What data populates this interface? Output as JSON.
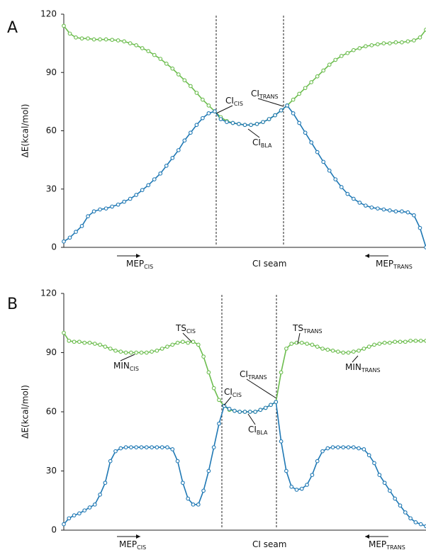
{
  "chart_data": [
    {
      "type": "line",
      "panel_label": "A",
      "ylabel": "ΔE(kcal/mol)",
      "ylim": [
        0,
        120
      ],
      "yticks": [
        0,
        30,
        60,
        90,
        120
      ],
      "x_labels": [
        {
          "main": "MEP",
          "sub": "CIS"
        },
        {
          "main": "CI seam"
        },
        {
          "main": "MEP",
          "sub": "TRANS"
        }
      ],
      "annotations": [
        {
          "main": "CI",
          "sub": "CIS"
        },
        {
          "main": "CI",
          "sub": "TRANS"
        },
        {
          "main": "CI",
          "sub": "BLA"
        }
      ],
      "series": [
        {
          "color": "#6cbd4e",
          "values": [
            114,
            110,
            108,
            107.5,
            107.5,
            107,
            107,
            107,
            106.8,
            106.5,
            106,
            105,
            104,
            102.5,
            101,
            99,
            97,
            94.5,
            92,
            89,
            86,
            83,
            79.5,
            76,
            73,
            70,
            67,
            65,
            64,
            63.5,
            63,
            63,
            63.5,
            64.5,
            66,
            68,
            70.5,
            73,
            76,
            79,
            82,
            85,
            88,
            91,
            94,
            96.5,
            98.5,
            100,
            101.5,
            102.5,
            103.5,
            104,
            104.5,
            105,
            105,
            105.5,
            105.5,
            106,
            106.5,
            108,
            112
          ]
        },
        {
          "color": "#1f78b4",
          "values": [
            3,
            5,
            8,
            11,
            16,
            18.5,
            19.5,
            20,
            21,
            22,
            23.5,
            25,
            27,
            29.5,
            32,
            35,
            38,
            42,
            46,
            50,
            55,
            59,
            63,
            66.5,
            69,
            70,
            66,
            64.5,
            64,
            63.5,
            63,
            63,
            63.5,
            64.5,
            66,
            68,
            70.5,
            73,
            69,
            64,
            59,
            54,
            49,
            44,
            39.5,
            35,
            31,
            27.5,
            25,
            23,
            21.5,
            20.5,
            20,
            19.5,
            19,
            18.5,
            18.5,
            18,
            16.5,
            10,
            0
          ]
        }
      ]
    },
    {
      "type": "line",
      "panel_label": "B",
      "ylabel": "ΔE(kcal/mol)",
      "ylim": [
        0,
        120
      ],
      "yticks": [
        0,
        30,
        60,
        90,
        120
      ],
      "x_labels": [
        {
          "main": "MEP",
          "sub": "CIS"
        },
        {
          "main": "CI seam"
        },
        {
          "main": "MEP",
          "sub": "TRANS"
        }
      ],
      "annotations": [
        {
          "main": "TS",
          "sub": "CIS"
        },
        {
          "main": "MIN",
          "sub": "CIS"
        },
        {
          "main": "CI",
          "sub": "CIS"
        },
        {
          "main": "CI",
          "sub": "TRANS"
        },
        {
          "main": "CI",
          "sub": "BLA"
        },
        {
          "main": "TS",
          "sub": "TRANS"
        },
        {
          "main": "MIN",
          "sub": "TRANS"
        }
      ],
      "series": [
        {
          "color": "#6cbd4e",
          "values": [
            100,
            96,
            95.5,
            95.5,
            95,
            95,
            94.5,
            94,
            93,
            92,
            91,
            90.5,
            90,
            90,
            90,
            90,
            90,
            90.5,
            91,
            92,
            93,
            94,
            95,
            95.5,
            95,
            95.5,
            94,
            88,
            80,
            72,
            66,
            63,
            61,
            60.5,
            60,
            60,
            60,
            60,
            61,
            62,
            63.5,
            65,
            80,
            92,
            94.5,
            95,
            95,
            94.5,
            94,
            93,
            92,
            91.5,
            91,
            90.5,
            90,
            90,
            90.5,
            91,
            92,
            93,
            94,
            94.5,
            95,
            95,
            95.5,
            95.5,
            95.5,
            96,
            96,
            96,
            96
          ]
        },
        {
          "color": "#1f78b4",
          "values": [
            3,
            6,
            7.5,
            8.5,
            10,
            11.5,
            13,
            18,
            24,
            35,
            40,
            41.5,
            42,
            42,
            42,
            42,
            42,
            42,
            42,
            42,
            42,
            41,
            35,
            24,
            16,
            13,
            13,
            20,
            30,
            42,
            54,
            63,
            61.5,
            60.5,
            60,
            60,
            60,
            60,
            61,
            62,
            63.5,
            65,
            45,
            30,
            22,
            20.5,
            21,
            23,
            28,
            35,
            40,
            41.5,
            42,
            42,
            42,
            42,
            42,
            41.5,
            41,
            38,
            34,
            28,
            24,
            20,
            16,
            12.5,
            9,
            6,
            4,
            3,
            2
          ]
        }
      ]
    }
  ]
}
